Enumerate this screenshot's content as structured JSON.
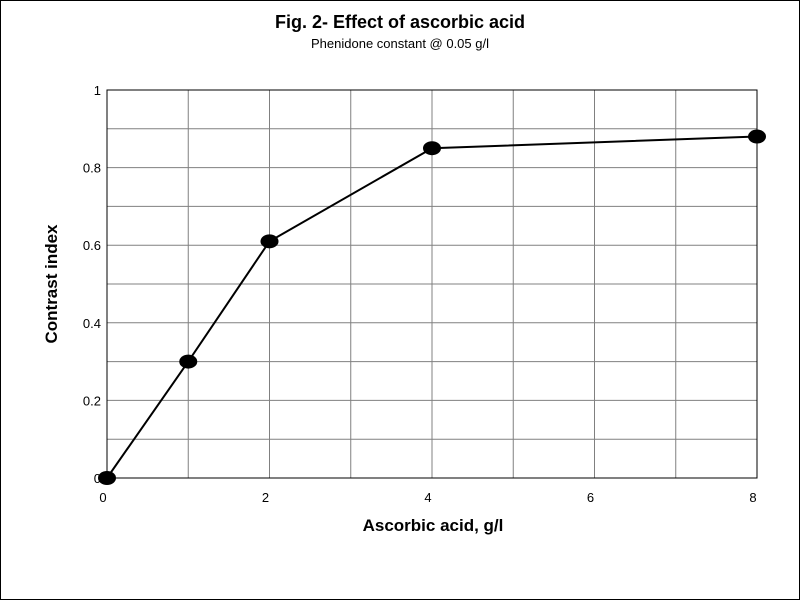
{
  "chart_data": {
    "type": "line",
    "title": "Fig. 2- Effect of ascorbic acid",
    "subtitle": "Phenidone constant @ 0.05 g/l",
    "xlabel": "Ascorbic acid, g/l",
    "ylabel": "Contrast index",
    "x_tick_labels": [
      "0",
      "2",
      "4",
      "6",
      "8"
    ],
    "y_tick_labels": [
      "0",
      "0.2",
      "0.4",
      "0.6",
      "0.8",
      "1"
    ],
    "x_gridline_count": 8,
    "y_gridline_count": 10,
    "xlim": [
      0,
      8
    ],
    "ylim": [
      0,
      1
    ],
    "grid": true,
    "legend": "none",
    "series": [
      {
        "x_category_index": [
          0,
          1,
          2,
          4,
          8
        ],
        "y": [
          0,
          0.3,
          0.61,
          0.85,
          0.88
        ]
      }
    ],
    "colors": {
      "background": "#ffffff",
      "grid": "#808080",
      "line": "#000000",
      "marker": "#000000"
    }
  }
}
